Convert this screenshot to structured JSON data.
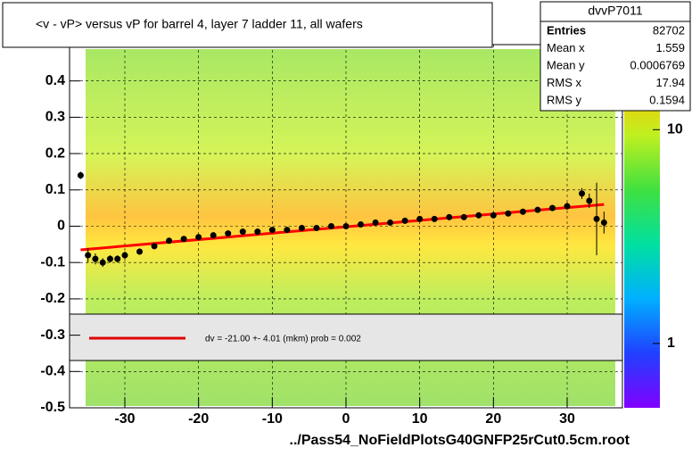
{
  "chart_data": {
    "type": "profile",
    "title": "<v - vP>       versus   vP for barrel 4, layer 7 ladder 11, all wafers",
    "x_label": "../Pass54_NoFieldPlotsG40GNFP25rCut0.5cm.root",
    "xlim": [
      -37.5,
      37.5
    ],
    "ylim": [
      -0.5,
      0.5
    ],
    "xticks": [
      -30,
      -20,
      -10,
      0,
      10,
      20,
      30
    ],
    "yticks": [
      -0.5,
      -0.4,
      -0.3,
      -0.2,
      -0.1,
      0,
      0.1,
      0.2,
      0.3,
      0.4
    ],
    "grid": true,
    "series": [
      {
        "name": "profile",
        "color": "#000000",
        "x": [
          -36,
          -35,
          -34,
          -33,
          -32,
          -31,
          -30,
          -28,
          -26,
          -24,
          -22,
          -20,
          -18,
          -16,
          -14,
          -12,
          -10,
          -8,
          -6,
          -4,
          -2,
          0,
          2,
          4,
          6,
          8,
          10,
          12,
          14,
          16,
          18,
          20,
          22,
          24,
          26,
          28,
          30,
          32,
          33,
          34,
          35
        ],
        "values": [
          0.14,
          -0.08,
          -0.09,
          -0.1,
          -0.09,
          -0.09,
          -0.08,
          -0.07,
          -0.055,
          -0.04,
          -0.035,
          -0.03,
          -0.025,
          -0.02,
          -0.015,
          -0.015,
          -0.01,
          -0.01,
          -0.005,
          -0.005,
          0,
          0,
          0.005,
          0.01,
          0.01,
          0.015,
          0.02,
          0.02,
          0.025,
          0.025,
          0.03,
          0.03,
          0.035,
          0.04,
          0.045,
          0.05,
          0.055,
          0.09,
          0.07,
          0.02,
          0.01
        ],
        "errors": [
          0.01,
          0.02,
          0.015,
          0.012,
          0.01,
          0.01,
          0.01,
          0.008,
          0.008,
          0.008,
          0.008,
          0.008,
          0.008,
          0.008,
          0.008,
          0.008,
          0.008,
          0.008,
          0.008,
          0.008,
          0.008,
          0.008,
          0.008,
          0.008,
          0.008,
          0.008,
          0.008,
          0.008,
          0.008,
          0.008,
          0.008,
          0.008,
          0.008,
          0.008,
          0.008,
          0.008,
          0.01,
          0.015,
          0.02,
          0.1,
          0.03
        ]
      }
    ],
    "fit": {
      "color": "#ff0000",
      "x": [
        -36,
        35
      ],
      "values": [
        -0.065,
        0.06
      ]
    },
    "legend_text": "dv =  -21.00 +-  4.01 (mkm) prob = 0.002",
    "colorbar": {
      "log": true,
      "zlim": [
        0.5,
        25
      ],
      "zticks": [
        1,
        10
      ]
    },
    "stats": {
      "name": "dvvP7011",
      "rows": [
        [
          "Entries",
          "82702"
        ],
        [
          "Mean x",
          "1.559"
        ],
        [
          "Mean y",
          "0.0006769"
        ],
        [
          "RMS x",
          "17.94"
        ],
        [
          "RMS y",
          "0.1594"
        ]
      ]
    }
  }
}
